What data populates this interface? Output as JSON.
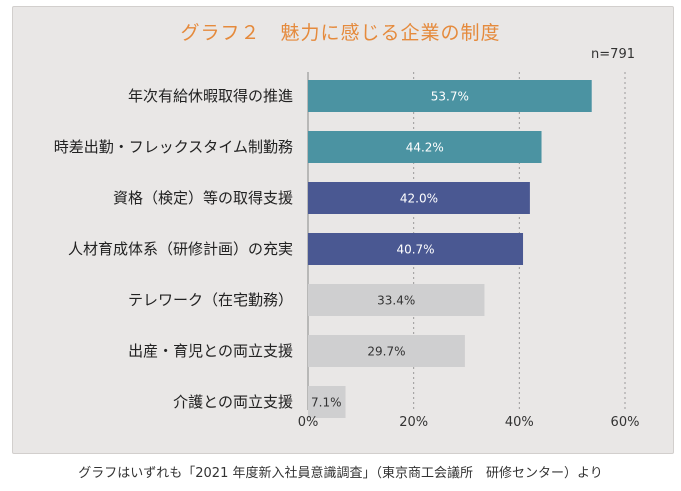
{
  "title": "グラフ２　魅力に感じる企業の制度",
  "sample_size": "n=791",
  "footnote": "グラフはいずれも「2021 年度新入社員意識調査」（東京商工会議所　研修センター）より",
  "colors": {
    "teal": "#4b93a2",
    "navy": "#4a5892",
    "gray": "#cfcfd0",
    "title": "#e58a3c"
  },
  "chart_data": {
    "type": "bar",
    "orientation": "horizontal",
    "title": "グラフ２　魅力に感じる企業の制度",
    "categories": [
      "年次有給休暇取得の推進",
      "時差出勤・フレックスタイム制勤務",
      "資格（検定）等の取得支援",
      "人材育成体系（研修計画）の充実",
      "テレワーク（在宅勤務）",
      "出産・育児との両立支援",
      "介護との両立支援"
    ],
    "values": [
      53.7,
      44.2,
      42.0,
      40.7,
      33.4,
      29.7,
      7.1
    ],
    "value_labels": [
      "53.7%",
      "44.2%",
      "42.0%",
      "40.7%",
      "33.4%",
      "29.7%",
      "7.1%"
    ],
    "bar_colors": [
      "teal",
      "teal",
      "navy",
      "navy",
      "gray",
      "gray",
      "gray"
    ],
    "xlim": [
      0,
      60
    ],
    "xticks": [
      "0%",
      "20%",
      "40%",
      "60%"
    ],
    "grid": true,
    "xlabel": "",
    "ylabel": ""
  }
}
